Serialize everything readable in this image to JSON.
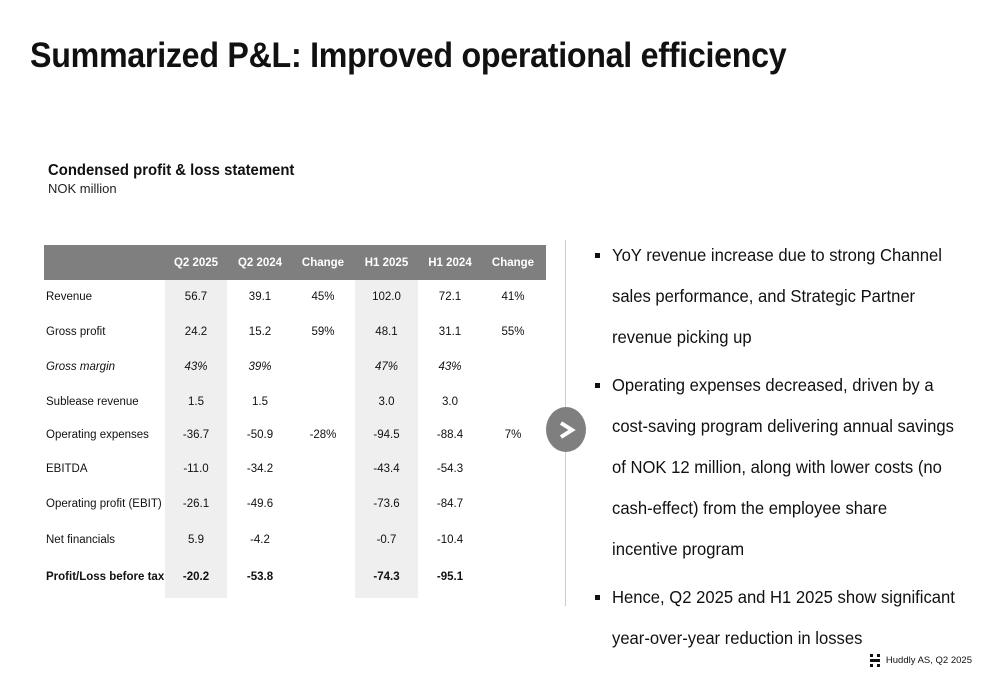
{
  "title": "Summarized P&L: Improved operational efficiency",
  "table_title": "Condensed profit & loss statement",
  "table_unit": "NOK million",
  "table": {
    "columns": [
      "",
      "Q2 2025",
      "Q2 2024",
      "Change",
      "H1 2025",
      "H1 2024",
      "Change"
    ],
    "rows": [
      {
        "label": "Revenue",
        "values": [
          "56.7",
          "39.1",
          "45%",
          "102.0",
          "72.1",
          "41%"
        ],
        "style": "normal"
      },
      {
        "label": "Gross profit",
        "values": [
          "24.2",
          "15.2",
          "59%",
          "48.1",
          "31.1",
          "55%"
        ],
        "style": "normal"
      },
      {
        "label": "Gross margin",
        "values": [
          "43%",
          "39%",
          "",
          "47%",
          "43%",
          ""
        ],
        "style": "italic"
      },
      {
        "label": "Sublease revenue",
        "values": [
          "1.5",
          "1.5",
          "",
          "3.0",
          "3.0",
          ""
        ],
        "style": "normal"
      },
      {
        "label": "Operating expenses",
        "values": [
          "-36.7",
          "-50.9",
          "-28%",
          "-94.5",
          "-88.4",
          "7%"
        ],
        "style": "normal"
      },
      {
        "label": "EBITDA",
        "values": [
          "-11.0",
          "-34.2",
          "",
          "-43.4",
          "-54.3",
          ""
        ],
        "style": "normal"
      },
      {
        "label": "Operating profit (EBIT)",
        "values": [
          "-26.1",
          "-49.6",
          "",
          "-73.6",
          "-84.7",
          ""
        ],
        "style": "normal"
      },
      {
        "label": "Net financials",
        "values": [
          "5.9",
          "-4.2",
          "",
          "-0.7",
          "-10.4",
          ""
        ],
        "style": "normal"
      },
      {
        "label": "Profit/Loss before tax",
        "values": [
          "-20.2",
          "-53.8",
          "",
          "-74.3",
          "-95.1",
          ""
        ],
        "style": "bold"
      }
    ]
  },
  "arrow_icon": "chevron-right-icon",
  "bullets": [
    "YoY revenue increase due to strong Channel sales performance, and Strategic Partner revenue picking up",
    "Operating expenses decreased, driven by a cost-saving program delivering annual savings of NOK 12 million, along with lower costs (no cash-effect) from the employee share incentive program",
    "Hence, Q2 2025 and H1 2025 show significant year-over-year reduction in losses"
  ],
  "footer": {
    "logo_icon": "huddly-logo-icon",
    "text": "Huddly AS, Q2 2025"
  },
  "colors": {
    "header_bg": "#7f7f7f",
    "shade": "#efefef",
    "text": "#111111"
  }
}
